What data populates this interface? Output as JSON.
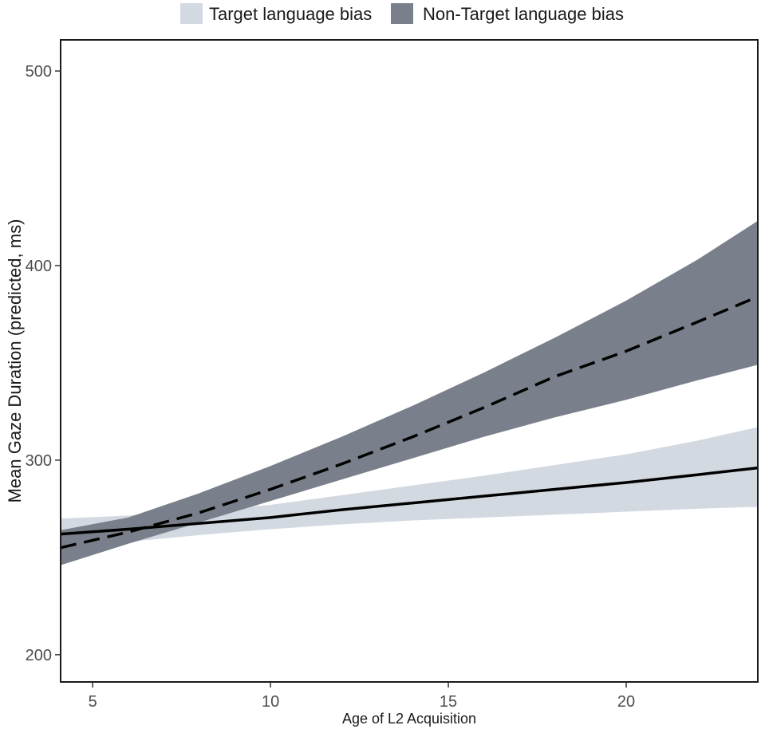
{
  "chart_data": {
    "type": "line",
    "title": "",
    "xlabel": "Age of L2 Acquisition",
    "ylabel": "Mean Gaze Duration (predicted, ms)",
    "xlim": [
      4.1,
      23.7
    ],
    "ylim": [
      186,
      516
    ],
    "x_ticks": [
      5,
      10,
      15,
      20
    ],
    "y_ticks": [
      200,
      300,
      400,
      500
    ],
    "grid": false,
    "legend_position": "top",
    "series": [
      {
        "name": "Target language bias",
        "line_style": "solid",
        "line_color": "#000000",
        "ribbon_color": "#d3d9e1",
        "x": [
          4.1,
          6,
          8,
          10,
          12,
          14,
          16,
          18,
          20,
          22,
          23.7
        ],
        "y": [
          262,
          264.5,
          267.5,
          270.5,
          274.5,
          278,
          281.5,
          285,
          288.5,
          292.5,
          296
        ],
        "lower": [
          254,
          258,
          261.5,
          264.5,
          267,
          269,
          270.5,
          272,
          273.5,
          275,
          276
        ],
        "upper": [
          270,
          271.5,
          274,
          277,
          282,
          287,
          292,
          297.5,
          303,
          310,
          317
        ]
      },
      {
        "name": "Non-Target language bias",
        "line_style": "dashed",
        "line_color": "#000000",
        "ribbon_color": "#7a808b",
        "x": [
          4.1,
          6,
          8,
          10,
          12,
          14,
          16,
          18,
          20,
          22,
          23.7
        ],
        "y": [
          255,
          263,
          273,
          285,
          298,
          312,
          327,
          343,
          356,
          371,
          384
        ],
        "lower": [
          246,
          257,
          268,
          279,
          290,
          301,
          312,
          322,
          331,
          341,
          349
        ],
        "upper": [
          264,
          270.5,
          283,
          297,
          312,
          328,
          345,
          363,
          382,
          403,
          423
        ]
      }
    ]
  }
}
